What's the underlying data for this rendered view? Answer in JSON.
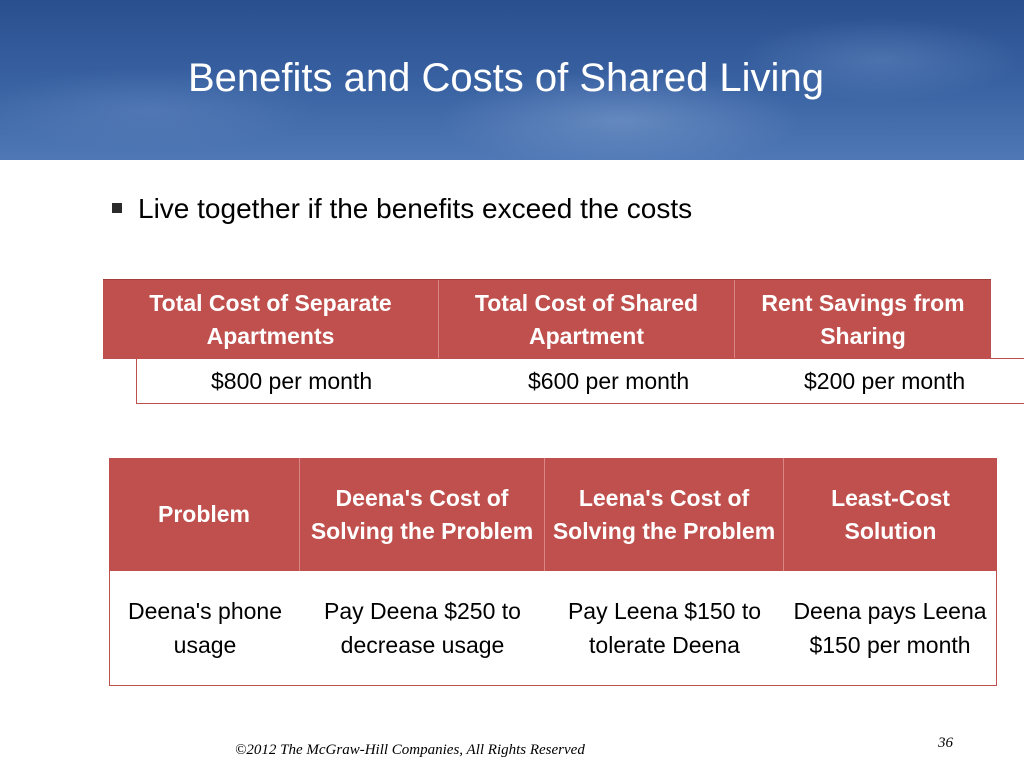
{
  "slide": {
    "title": "Benefits and Costs of Shared Living",
    "bullet": "Live together if the benefits exceed the costs",
    "footer": "©2012 The McGraw-Hill Companies, All Rights Reserved",
    "page_number": "36"
  },
  "table1": {
    "headers": [
      "Total Cost of Separate Apartments",
      "Total Cost of Shared Apartment",
      "Rent Savings from Sharing"
    ],
    "values": [
      "$800 per month",
      "$600 per month",
      "$200 per month"
    ]
  },
  "table2": {
    "headers": [
      "Problem",
      "Deena's Cost of Solving the Problem",
      "Leena's Cost of Solving the Problem",
      "Least-Cost Solution"
    ],
    "row": [
      "Deena's phone usage",
      "Pay Deena $250 to decrease usage",
      "Pay Leena $150 to tolerate Deena",
      "Deena pays Leena  $150 per month"
    ]
  },
  "colors": {
    "header_blue": "#3a63a3",
    "table_red": "#c0504d"
  }
}
